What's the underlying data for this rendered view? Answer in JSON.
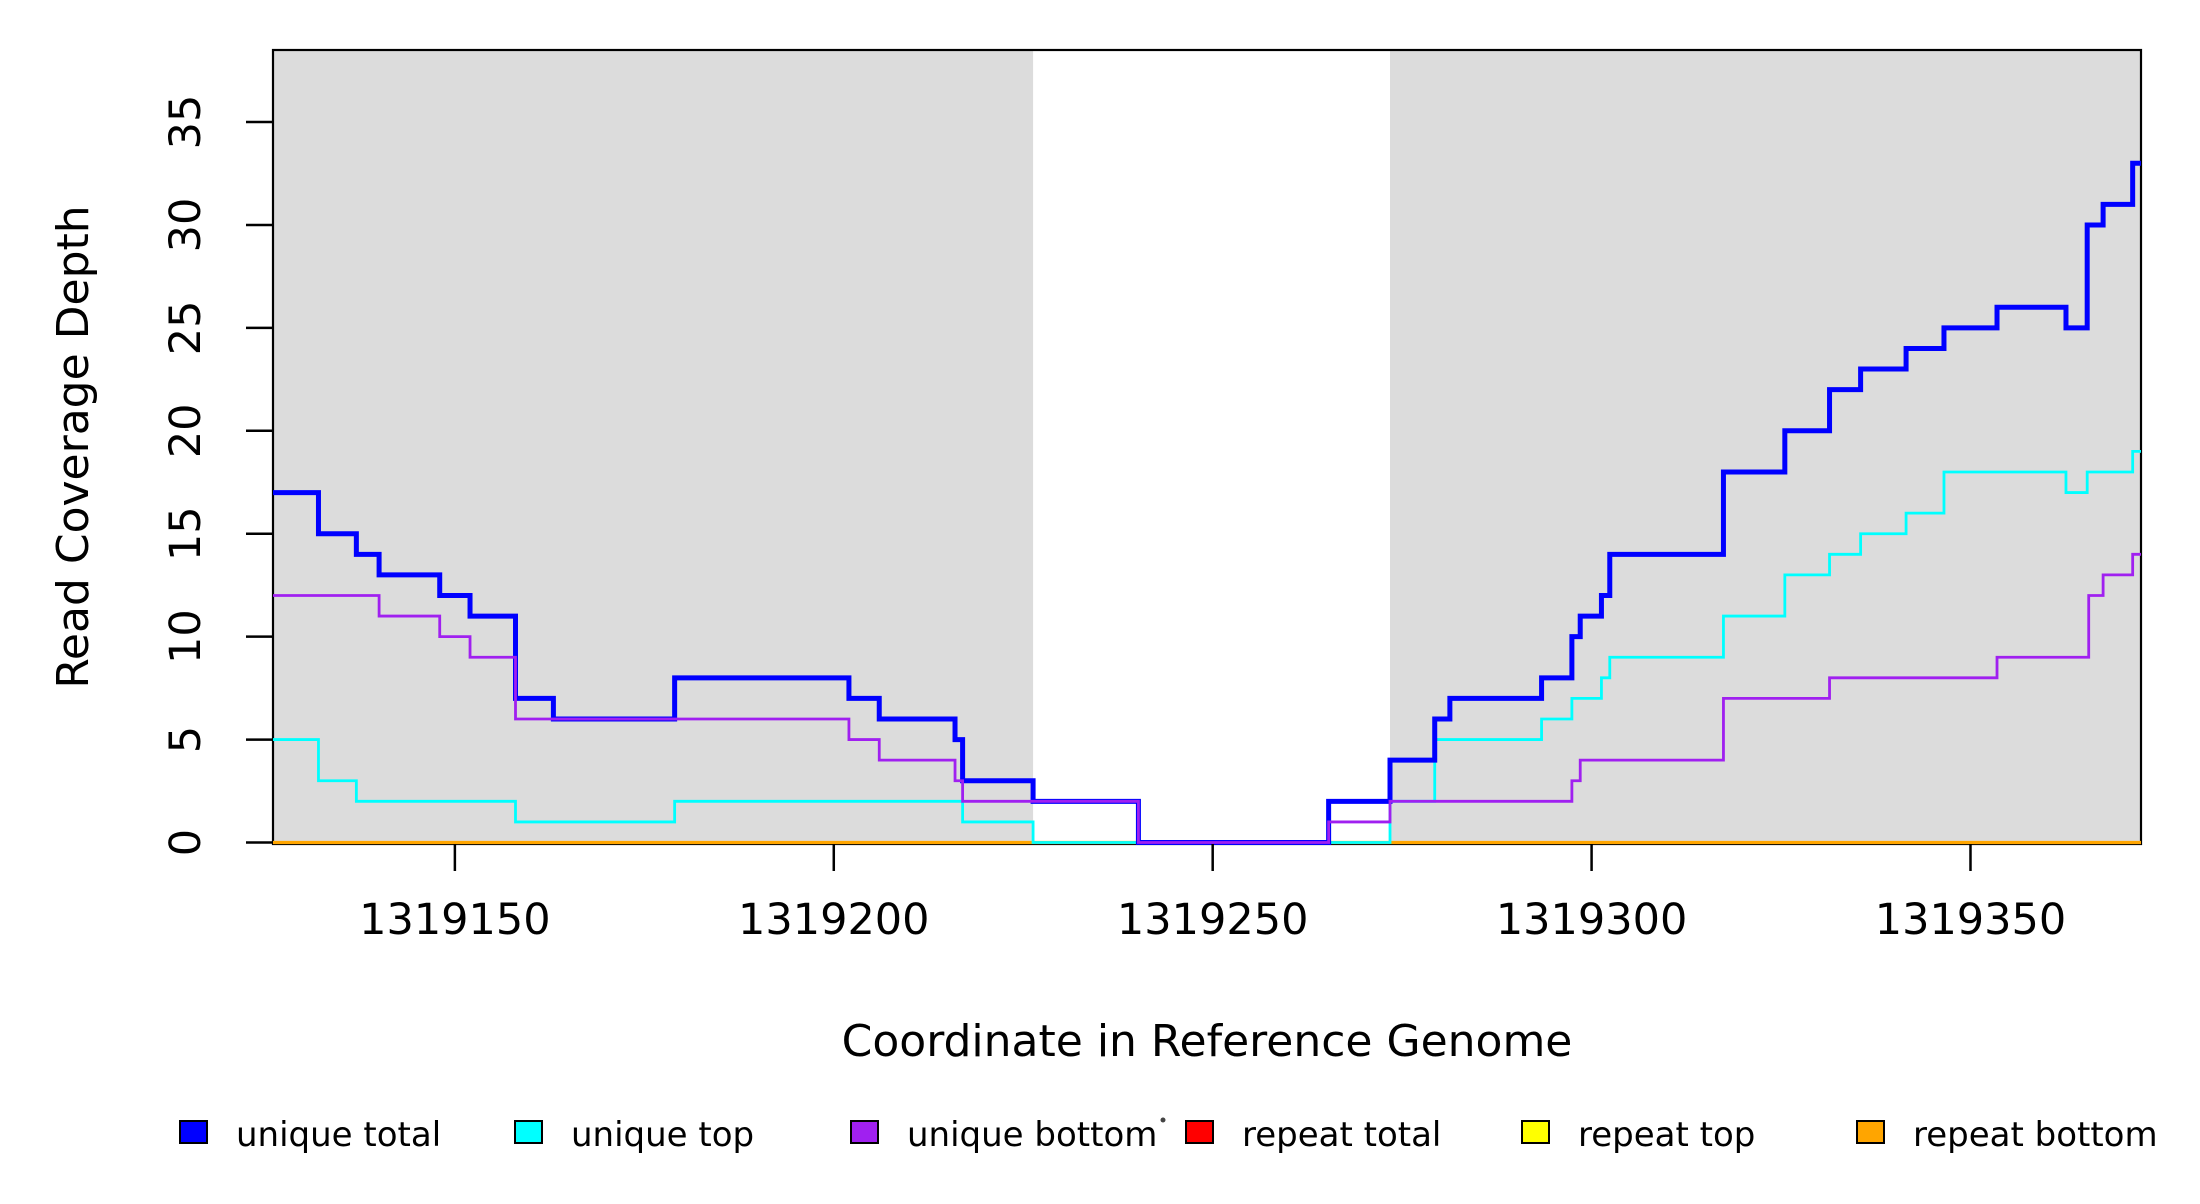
{
  "chart_data": {
    "type": "line",
    "subtype": "step-post",
    "title": "",
    "xlabel": "Coordinate in Reference Genome",
    "ylabel": "Read Coverage Depth",
    "xlim": [
      1319126,
      1319372.5
    ],
    "ylim": [
      0,
      38.5
    ],
    "x_ticks": [
      1319150,
      1319200,
      1319250,
      1319300,
      1319350
    ],
    "y_ticks": [
      0,
      5,
      10,
      15,
      20,
      25,
      30,
      35
    ],
    "grid": "off",
    "legend_position": "bottom",
    "shade_color": "#DCDCDC",
    "shaded_regions": [
      {
        "x0": 1319126,
        "x1": 1319226.3
      },
      {
        "x0": 1319273.4,
        "x1": 1319372.5
      }
    ],
    "draw_order": [
      "repeat total",
      "repeat top",
      "repeat bottom",
      "unique top",
      "unique total",
      "unique bottom"
    ],
    "series": [
      {
        "name": "unique total",
        "color": "#0000FF",
        "lwd": 5,
        "points": [
          [
            1319126,
            17
          ],
          [
            1319132,
            15
          ],
          [
            1319137,
            14
          ],
          [
            1319140,
            13
          ],
          [
            1319148,
            12
          ],
          [
            1319152,
            11
          ],
          [
            1319158,
            7
          ],
          [
            1319163,
            6
          ],
          [
            1319179,
            8
          ],
          [
            1319202,
            7
          ],
          [
            1319206,
            6
          ],
          [
            1319216,
            5
          ],
          [
            1319217,
            3
          ],
          [
            1319226.3,
            2
          ],
          [
            1319240.2,
            0
          ],
          [
            1319265.3,
            2
          ],
          [
            1319273.4,
            4
          ],
          [
            1319279.3,
            6
          ],
          [
            1319281.3,
            7
          ],
          [
            1319293.4,
            8
          ],
          [
            1319297.4,
            10
          ],
          [
            1319298.5,
            11
          ],
          [
            1319301.3,
            12
          ],
          [
            1319302.4,
            14
          ],
          [
            1319317.4,
            18
          ],
          [
            1319325.5,
            20
          ],
          [
            1319331.4,
            22
          ],
          [
            1319335.5,
            23
          ],
          [
            1319341.5,
            24
          ],
          [
            1319346.5,
            25
          ],
          [
            1319353.5,
            26
          ],
          [
            1319362.6,
            25
          ],
          [
            1319365.4,
            30
          ],
          [
            1319367.5,
            31
          ],
          [
            1319371.4,
            33
          ]
        ]
      },
      {
        "name": "unique top",
        "color": "#00FFFF",
        "lwd": 2.8,
        "points": [
          [
            1319126,
            5
          ],
          [
            1319132,
            3
          ],
          [
            1319137,
            2
          ],
          [
            1319158,
            1
          ],
          [
            1319179,
            2
          ],
          [
            1319217,
            1
          ],
          [
            1319226.3,
            0
          ],
          [
            1319273.4,
            2
          ],
          [
            1319279.3,
            5
          ],
          [
            1319293.4,
            6
          ],
          [
            1319297.4,
            7
          ],
          [
            1319301.3,
            8
          ],
          [
            1319302.4,
            9
          ],
          [
            1319317.4,
            11
          ],
          [
            1319325.5,
            13
          ],
          [
            1319331.4,
            14
          ],
          [
            1319335.5,
            15
          ],
          [
            1319341.5,
            16
          ],
          [
            1319346.5,
            18
          ],
          [
            1319362.6,
            17
          ],
          [
            1319365.4,
            18
          ],
          [
            1319371.4,
            19
          ]
        ]
      },
      {
        "name": "unique bottom",
        "color": "#A020F0",
        "lwd": 2.8,
        "points": [
          [
            1319126,
            12
          ],
          [
            1319140,
            11
          ],
          [
            1319148,
            10
          ],
          [
            1319152,
            9
          ],
          [
            1319158,
            6
          ],
          [
            1319202,
            5
          ],
          [
            1319206,
            4
          ],
          [
            1319216,
            3
          ],
          [
            1319217,
            2
          ],
          [
            1319240.2,
            0
          ],
          [
            1319265.3,
            1
          ],
          [
            1319273.4,
            2
          ],
          [
            1319297.4,
            3
          ],
          [
            1319298.5,
            4
          ],
          [
            1319317.4,
            7
          ],
          [
            1319331.4,
            8
          ],
          [
            1319353.5,
            9
          ],
          [
            1319365.6,
            12
          ],
          [
            1319367.5,
            13
          ],
          [
            1319371.4,
            14
          ]
        ]
      },
      {
        "name": "repeat total",
        "color": "#FF0000",
        "lwd": 2.8,
        "points": [
          [
            1319126,
            0
          ]
        ]
      },
      {
        "name": "repeat top",
        "color": "#FFFF00",
        "lwd": 2.8,
        "points": [
          [
            1319126,
            0
          ]
        ]
      },
      {
        "name": "repeat bottom",
        "color": "#FFA500",
        "lwd": 3.2,
        "points": [
          [
            1319126,
            0
          ]
        ]
      }
    ]
  },
  "legend": {
    "items": [
      {
        "label": "unique total",
        "color": "#0000FF"
      },
      {
        "label": "unique top",
        "color": "#00FFFF"
      },
      {
        "label": "unique bottom",
        "color": "#A020F0"
      },
      {
        "label": "repeat total",
        "color": "#FF0000"
      },
      {
        "label": "repeat top",
        "color": "#FFFF00"
      },
      {
        "label": "repeat bottom",
        "color": "#FFA500"
      }
    ]
  }
}
